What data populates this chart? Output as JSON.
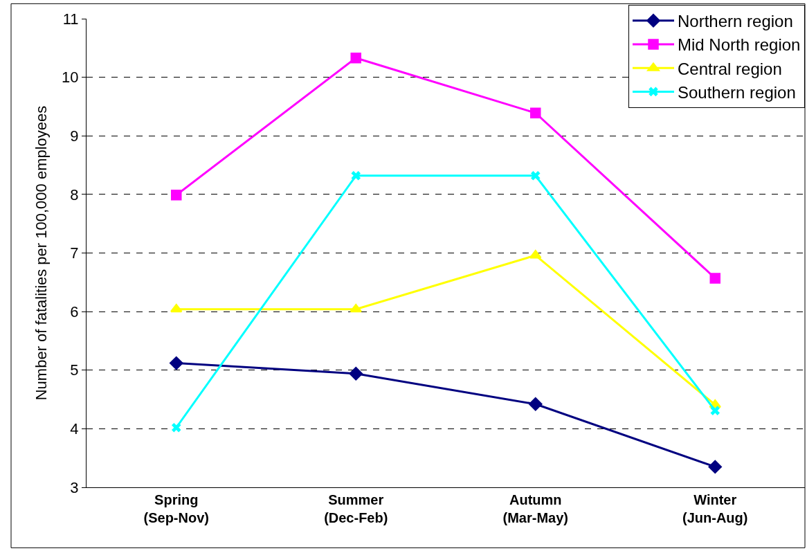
{
  "chart_data": {
    "type": "line",
    "ylabel": "Number of fatalities per 100,000 employees",
    "categories": [
      "Spring\n(Sep-Nov)",
      "Summer\n(Dec-Feb)",
      "Autumn\n(Mar-May)",
      "Winter\n(Jun-Aug)"
    ],
    "series": [
      {
        "name": "Northern region",
        "color": "#000080",
        "marker": "diamond",
        "values": [
          5.12,
          4.94,
          4.42,
          3.35
        ]
      },
      {
        "name": "Mid North region",
        "color": "#ff00ff",
        "marker": "square",
        "values": [
          7.99,
          10.33,
          9.39,
          6.57
        ]
      },
      {
        "name": "Central region",
        "color": "#ffff00",
        "marker": "triangle",
        "values": [
          6.04,
          6.04,
          6.96,
          4.41
        ]
      },
      {
        "name": "Southern region",
        "color": "#00ffff",
        "marker": "cross",
        "values": [
          4.02,
          8.32,
          8.32,
          4.31
        ]
      }
    ],
    "ylim": [
      3,
      11
    ],
    "yticks": [
      3,
      4,
      5,
      6,
      7,
      8,
      9,
      10,
      11
    ],
    "grid": "y",
    "legend": "top right",
    "line_style": "solid"
  }
}
